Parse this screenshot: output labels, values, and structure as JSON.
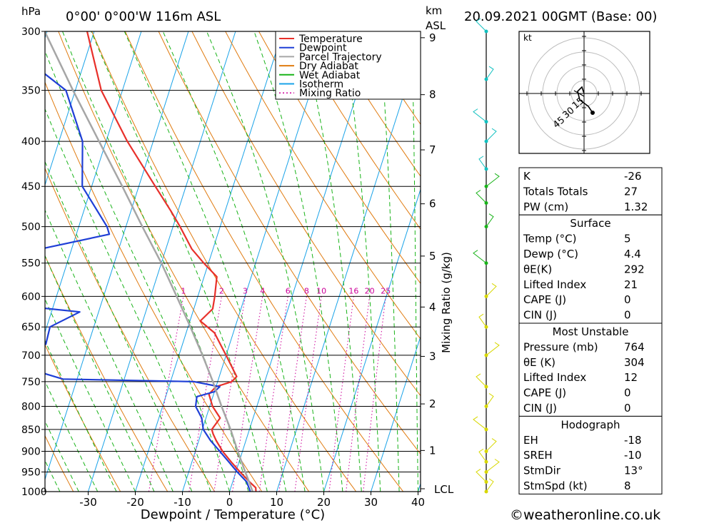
{
  "header": {
    "pressure_unit": "hPa",
    "location": "0°00' 0°00'W 116m ASL",
    "height_unit": "km",
    "height_ref": "ASL",
    "datetime": "20.09.2021 00GMT (Base: 00)"
  },
  "xlabel": "Dewpoint / Temperature (°C)",
  "mixing_ratio_label": "Mixing Ratio (g/kg)",
  "lcl_label": "LCL",
  "credit": "©weatheronline.co.uk",
  "hodograph": {
    "unit": "kt",
    "ring_labels": [
      "15",
      "30",
      "45"
    ]
  },
  "colors": {
    "temperature": "#e8302a",
    "dewpoint": "#1f3fd6",
    "parcel": "#a6a6a6",
    "dry_adiabat": "#e07b10",
    "wet_adiabat": "#19b319",
    "isotherm": "#1aa3e8",
    "mixing_ratio": "#cc0099"
  },
  "legend": [
    {
      "label": "Temperature",
      "key": "temperature",
      "dash": false
    },
    {
      "label": "Dewpoint",
      "key": "dewpoint",
      "dash": false
    },
    {
      "label": "Parcel Trajectory",
      "key": "parcel",
      "dash": false
    },
    {
      "label": "Dry Adiabat",
      "key": "dry_adiabat",
      "dash": false
    },
    {
      "label": "Wet Adiabat",
      "key": "wet_adiabat",
      "dash": false
    },
    {
      "label": "Isotherm",
      "key": "isotherm",
      "dash": false
    },
    {
      "label": "Mixing Ratio",
      "key": "mixing_ratio",
      "dash": true
    }
  ],
  "table": {
    "top": [
      {
        "key": "K",
        "value": "-26"
      },
      {
        "key": "Totals Totals",
        "value": "27"
      },
      {
        "key": "PW (cm)",
        "value": "1.32"
      }
    ],
    "sections": [
      {
        "title": "Surface",
        "rows": [
          {
            "key": "Temp (°C)",
            "value": "5"
          },
          {
            "key": "Dewp (°C)",
            "value": "4.4"
          },
          {
            "key": "θE(K)",
            "value": "292"
          },
          {
            "key": "Lifted Index",
            "value": "21"
          },
          {
            "key": "CAPE (J)",
            "value": "0"
          },
          {
            "key": "CIN (J)",
            "value": "0"
          }
        ]
      },
      {
        "title": "Most Unstable",
        "rows": [
          {
            "key": "Pressure (mb)",
            "value": "764"
          },
          {
            "key": "θE (K)",
            "value": "304"
          },
          {
            "key": "Lifted Index",
            "value": "12"
          },
          {
            "key": "CAPE (J)",
            "value": "0"
          },
          {
            "key": "CIN (J)",
            "value": "0"
          }
        ]
      },
      {
        "title": "Hodograph",
        "rows": [
          {
            "key": "EH",
            "value": "-18"
          },
          {
            "key": "SREH",
            "value": "-10"
          },
          {
            "key": "StmDir",
            "value": "13°"
          },
          {
            "key": "StmSpd (kt)",
            "value": "8"
          }
        ]
      }
    ]
  },
  "chart_data": {
    "type": "line",
    "title": "",
    "xlabel": "Dewpoint / Temperature (°C)",
    "ylabel": "hPa",
    "y_scale": "log",
    "y_reversed": true,
    "skew": true,
    "x_ticks": [
      -30,
      -20,
      -10,
      0,
      10,
      20,
      30,
      40
    ],
    "pressure_levels": [
      300,
      350,
      400,
      450,
      500,
      550,
      600,
      650,
      700,
      750,
      800,
      850,
      900,
      950,
      1000
    ],
    "height_ticks_km": [
      1,
      2,
      3,
      4,
      5,
      6,
      7,
      8,
      9
    ],
    "height_ticks_pressure": [
      898,
      795,
      702,
      617,
      540,
      471,
      409,
      354,
      305
    ],
    "mixing_ratio_labels": [
      "1",
      "2",
      "3",
      "4",
      "6",
      "8",
      "10",
      "16",
      "20",
      "25"
    ],
    "mixing_ratio_values": [
      1,
      2,
      3,
      4,
      6,
      8,
      10,
      16,
      20,
      25
    ],
    "series": [
      {
        "name": "Temperature",
        "key": "temperature",
        "points": [
          [
            1000,
            5.6
          ],
          [
            990,
            5.3
          ],
          [
            975,
            3.6
          ],
          [
            950,
            0.9
          ],
          [
            925,
            -1.7
          ],
          [
            900,
            -4.2
          ],
          [
            875,
            -6.3
          ],
          [
            860,
            -7.4
          ],
          [
            850,
            -8.0
          ],
          [
            825,
            -7.0
          ],
          [
            800,
            -9.4
          ],
          [
            775,
            -11.0
          ],
          [
            760,
            -10.0
          ],
          [
            750,
            -7.0
          ],
          [
            740,
            -6.3
          ],
          [
            700,
            -10.0
          ],
          [
            660,
            -14.0
          ],
          [
            640,
            -17.8
          ],
          [
            620,
            -16.0
          ],
          [
            600,
            -16.4
          ],
          [
            570,
            -17.3
          ],
          [
            550,
            -21.0
          ],
          [
            530,
            -24.5
          ],
          [
            500,
            -28.5
          ],
          [
            480,
            -31.5
          ],
          [
            450,
            -36.5
          ],
          [
            400,
            -45.5
          ],
          [
            350,
            -54.5
          ],
          [
            300,
            -61.5
          ]
        ]
      },
      {
        "name": "Dewpoint",
        "key": "dewpoint",
        "points": [
          [
            1000,
            4.4
          ],
          [
            975,
            3.0
          ],
          [
            950,
            0.3
          ],
          [
            925,
            -2.2
          ],
          [
            900,
            -4.8
          ],
          [
            875,
            -7.5
          ],
          [
            850,
            -9.8
          ],
          [
            825,
            -10.9
          ],
          [
            800,
            -13.0
          ],
          [
            780,
            -13.4
          ],
          [
            770,
            -10.0
          ],
          [
            760,
            -9.2
          ],
          [
            750,
            -15.0
          ],
          [
            745,
            -43.0
          ],
          [
            735,
            -47.0
          ],
          [
            720,
            -51.0
          ],
          [
            700,
            -55.0
          ],
          [
            680,
            -49.0
          ],
          [
            650,
            -49.3
          ],
          [
            625,
            -44.0
          ],
          [
            600,
            -77.0
          ],
          [
            570,
            -72.5
          ],
          [
            550,
            -69.5
          ],
          [
            510,
            -43.0
          ],
          [
            500,
            -44.0
          ],
          [
            450,
            -52.0
          ],
          [
            400,
            -55.0
          ],
          [
            350,
            -62.0
          ],
          [
            300,
            -82.0
          ]
        ]
      },
      {
        "name": "Parcel Trajectory",
        "key": "parcel",
        "points": [
          [
            1000,
            4.9
          ],
          [
            975,
            3.5
          ],
          [
            950,
            2.0
          ],
          [
            900,
            -1.0
          ],
          [
            850,
            -4.0
          ],
          [
            800,
            -7.5
          ],
          [
            750,
            -11.0
          ],
          [
            700,
            -15.0
          ],
          [
            650,
            -19.5
          ],
          [
            600,
            -24.5
          ],
          [
            550,
            -30.0
          ],
          [
            500,
            -36.5
          ],
          [
            450,
            -43.5
          ],
          [
            400,
            -51.5
          ],
          [
            350,
            -60.5
          ],
          [
            300,
            -70.5
          ]
        ]
      }
    ],
    "wind_profile_pressure": [
      1000,
      975,
      950,
      925,
      900,
      850,
      800,
      760,
      700,
      650,
      600,
      550,
      500,
      470,
      450,
      430,
      400,
      380,
      340,
      300
    ],
    "hodograph_points": [
      [
        0,
        0
      ],
      [
        -1,
        3
      ],
      [
        -3,
        1
      ],
      [
        -2,
        -3
      ],
      [
        2,
        -6
      ],
      [
        4,
        -9
      ]
    ],
    "storm_motion": {
      "dir_deg": 13,
      "speed_kt": 8
    }
  }
}
